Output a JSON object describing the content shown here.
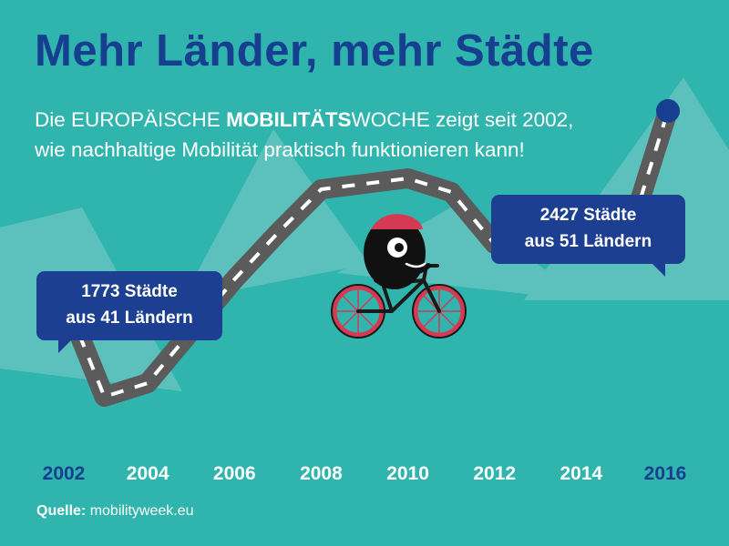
{
  "header": {
    "title": "Mehr Länder, mehr Städte",
    "subtitle_line1_prefix": "Die EUROPÄISCHE ",
    "subtitle_line1_bold": "MOBILITÄTS",
    "subtitle_line1_suffix": "WOCHE zeigt seit 2002,",
    "subtitle_line2": "wie nachhaltige Mobilität praktisch funktionieren kann!"
  },
  "callouts": {
    "start": {
      "line1": "1773 Städte",
      "line2": "aus 41 Ländern"
    },
    "end": {
      "line1": "2427 Städte",
      "line2": "aus 51 Ländern"
    }
  },
  "source": {
    "label": "Quelle:",
    "value": "mobilityweek.eu"
  },
  "colors": {
    "background": "#2fb4ae",
    "mountains": "#5cc1bd",
    "title": "#163f8f",
    "callout": "#1c3f91",
    "road": "#5b5b5b",
    "road_marking": "#ffffff",
    "endpoint": "#163f8f",
    "tick_label": "#ffffff",
    "tick_label_highlight": "#163f8f"
  },
  "illustration": {
    "icon": "cyclist-mascot-icon",
    "helmet_color": "#d63a52",
    "wheel_color": "#d63a52"
  },
  "chart_data": {
    "type": "line",
    "title": "Mehr Länder, mehr Städte",
    "xlabel": "",
    "ylabel": "",
    "xlim": [
      2002,
      2016
    ],
    "ylim": [
      1100,
      2500
    ],
    "x_ticks": [
      2002,
      2004,
      2006,
      2008,
      2010,
      2012,
      2014,
      2016
    ],
    "highlighted_ticks": [
      2002,
      2016
    ],
    "grid": false,
    "legend": "none",
    "series": [
      {
        "x": [
          2002,
          2003,
          2004,
          2005,
          2006,
          2007,
          2008,
          2009,
          2010,
          2011,
          2012,
          2013,
          2014,
          2015,
          2016
        ],
        "values": [
          1773,
          1380,
          1430,
          1620,
          1810,
          1980,
          2140,
          2160,
          2180,
          2130,
          1940,
          1980,
          1990,
          1920,
          2427
        ]
      }
    ],
    "annotations": [
      {
        "x": 2002,
        "text": "1773 Städte aus 41 Ländern"
      },
      {
        "x": 2016,
        "text": "2427 Städte aus 51 Ländern"
      }
    ]
  }
}
